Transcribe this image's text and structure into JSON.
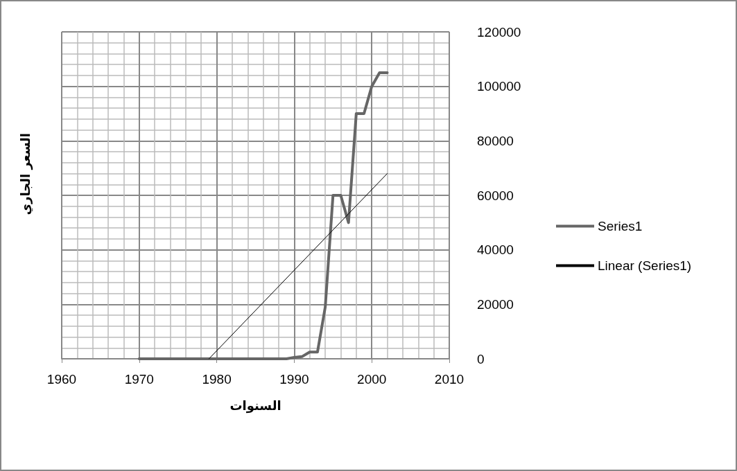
{
  "chart_data": {
    "type": "line",
    "xlabel": "السنوات",
    "ylabel": "السعر الجاري",
    "xlim": [
      1960,
      2010
    ],
    "xticks": [
      1960,
      1970,
      1980,
      1990,
      2000,
      2010
    ],
    "ylim": [
      0,
      120000
    ],
    "yticks": [
      0,
      20000,
      40000,
      60000,
      80000,
      100000,
      120000
    ],
    "grid": true,
    "legend": "right",
    "marker": "none",
    "series": [
      {
        "name": "Series1",
        "color": "#666666",
        "line_style": "solid",
        "x": [
          1970,
          1971,
          1972,
          1973,
          1974,
          1975,
          1976,
          1977,
          1978,
          1979,
          1980,
          1981,
          1982,
          1983,
          1984,
          1985,
          1986,
          1987,
          1988,
          1989,
          1990,
          1991,
          1992,
          1993,
          1994,
          1995,
          1996,
          1997,
          1998,
          1999,
          2000,
          2001,
          2002
        ],
        "values": [
          0,
          0,
          0,
          0,
          0,
          0,
          0,
          0,
          0,
          0,
          0,
          0,
          0,
          0,
          0,
          0,
          0,
          0,
          0,
          0,
          500,
          800,
          2500,
          2500,
          19000,
          60000,
          60000,
          50000,
          90000,
          90000,
          100000,
          105000,
          105000
        ]
      },
      {
        "name": "Linear (Series1)",
        "color": "#000000",
        "line_style": "solid",
        "x": [
          1979,
          2002
        ],
        "values": [
          0,
          68000
        ]
      }
    ]
  }
}
